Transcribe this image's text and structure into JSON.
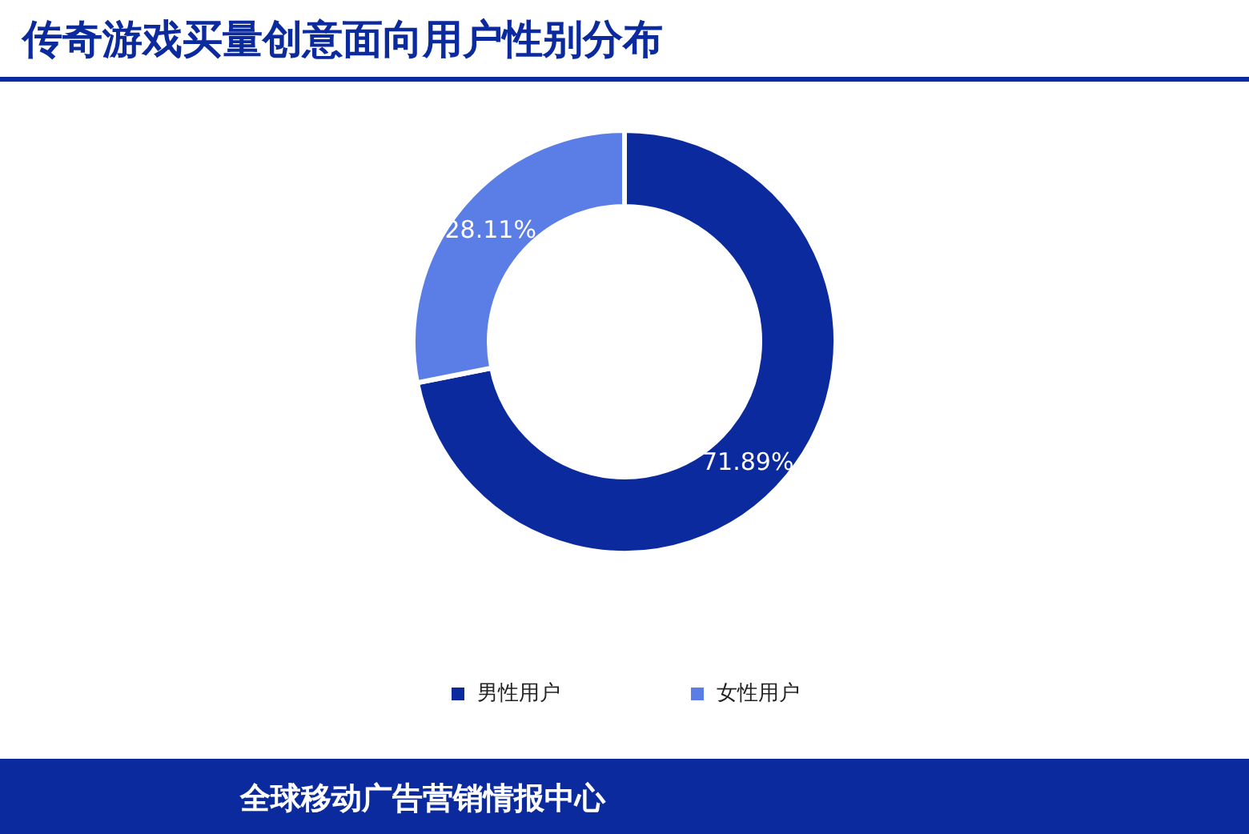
{
  "chart_data": {
    "type": "donut",
    "title": "传奇游戏买量创意面向用户性别分布",
    "categories": [
      "男性用户",
      "女性用户"
    ],
    "values": [
      71.89,
      28.11
    ],
    "colors": [
      "#0b2a9e",
      "#5a7de6"
    ],
    "value_labels": [
      "71.89%",
      "28.11%"
    ],
    "legend": "bottom",
    "annotations": [
      "全球移动广告营销情报中心"
    ]
  }
}
